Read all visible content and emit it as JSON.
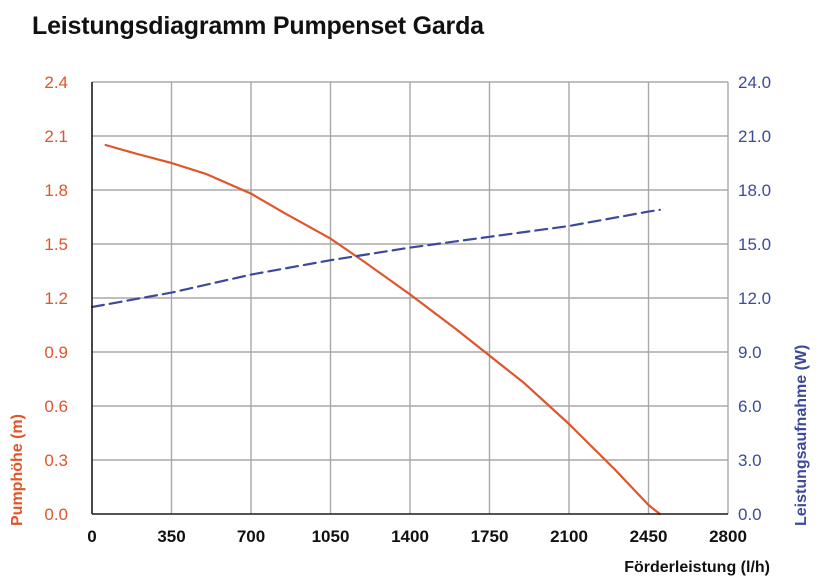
{
  "title": "Leistungsdiagramm Pumpenset Garda",
  "colors": {
    "left": "#e0552a",
    "right": "#3d4a9c",
    "grid": "#a8a8a8",
    "axis": "#1a1a1a"
  },
  "chart_data": {
    "type": "line",
    "title": "Leistungsdiagramm Pumpenset Garda",
    "xlabel": "Förderleistung (l/h)",
    "ylabel_left": "Pumphöhe (m)",
    "ylabel_right": "Leistungsaufnahme (W)",
    "xlim": [
      0,
      2800
    ],
    "ylim_left": [
      0,
      2.4
    ],
    "ylim_right": [
      0,
      24
    ],
    "grid": true,
    "x_ticks": [
      "0",
      "350",
      "700",
      "1050",
      "1400",
      "1750",
      "2100",
      "2450",
      "2800"
    ],
    "x_tick_values": [
      0,
      350,
      700,
      1050,
      1400,
      1750,
      2100,
      2450,
      2800
    ],
    "y_left_ticks": [
      "0.0",
      "0.3",
      "0.6",
      "0.9",
      "1.2",
      "1.5",
      "1.8",
      "2.1",
      "2.4"
    ],
    "y_left_tick_values": [
      0,
      0.3,
      0.6,
      0.9,
      1.2,
      1.5,
      1.8,
      2.1,
      2.4
    ],
    "y_right_ticks": [
      "0.0",
      "3.0",
      "6.0",
      "9.0",
      "12.0",
      "15.0",
      "18.0",
      "21.0",
      "24.0"
    ],
    "y_right_tick_values": [
      0,
      3,
      6,
      9,
      12,
      15,
      18,
      21,
      24
    ],
    "series": [
      {
        "axis": "left",
        "style": "solid",
        "x": [
          60,
          200,
          350,
          500,
          700,
          850,
          1050,
          1200,
          1400,
          1600,
          1750,
          1900,
          2100,
          2300,
          2450,
          2500
        ],
        "y": [
          2.05,
          2.0,
          1.95,
          1.89,
          1.78,
          1.67,
          1.53,
          1.4,
          1.22,
          1.03,
          0.88,
          0.73,
          0.5,
          0.25,
          0.05,
          0.0
        ]
      },
      {
        "axis": "right",
        "style": "dashed",
        "x": [
          0,
          350,
          700,
          1050,
          1400,
          1750,
          2100,
          2450,
          2500
        ],
        "y": [
          11.5,
          12.3,
          13.3,
          14.1,
          14.8,
          15.4,
          16.0,
          16.8,
          16.9
        ]
      }
    ]
  }
}
